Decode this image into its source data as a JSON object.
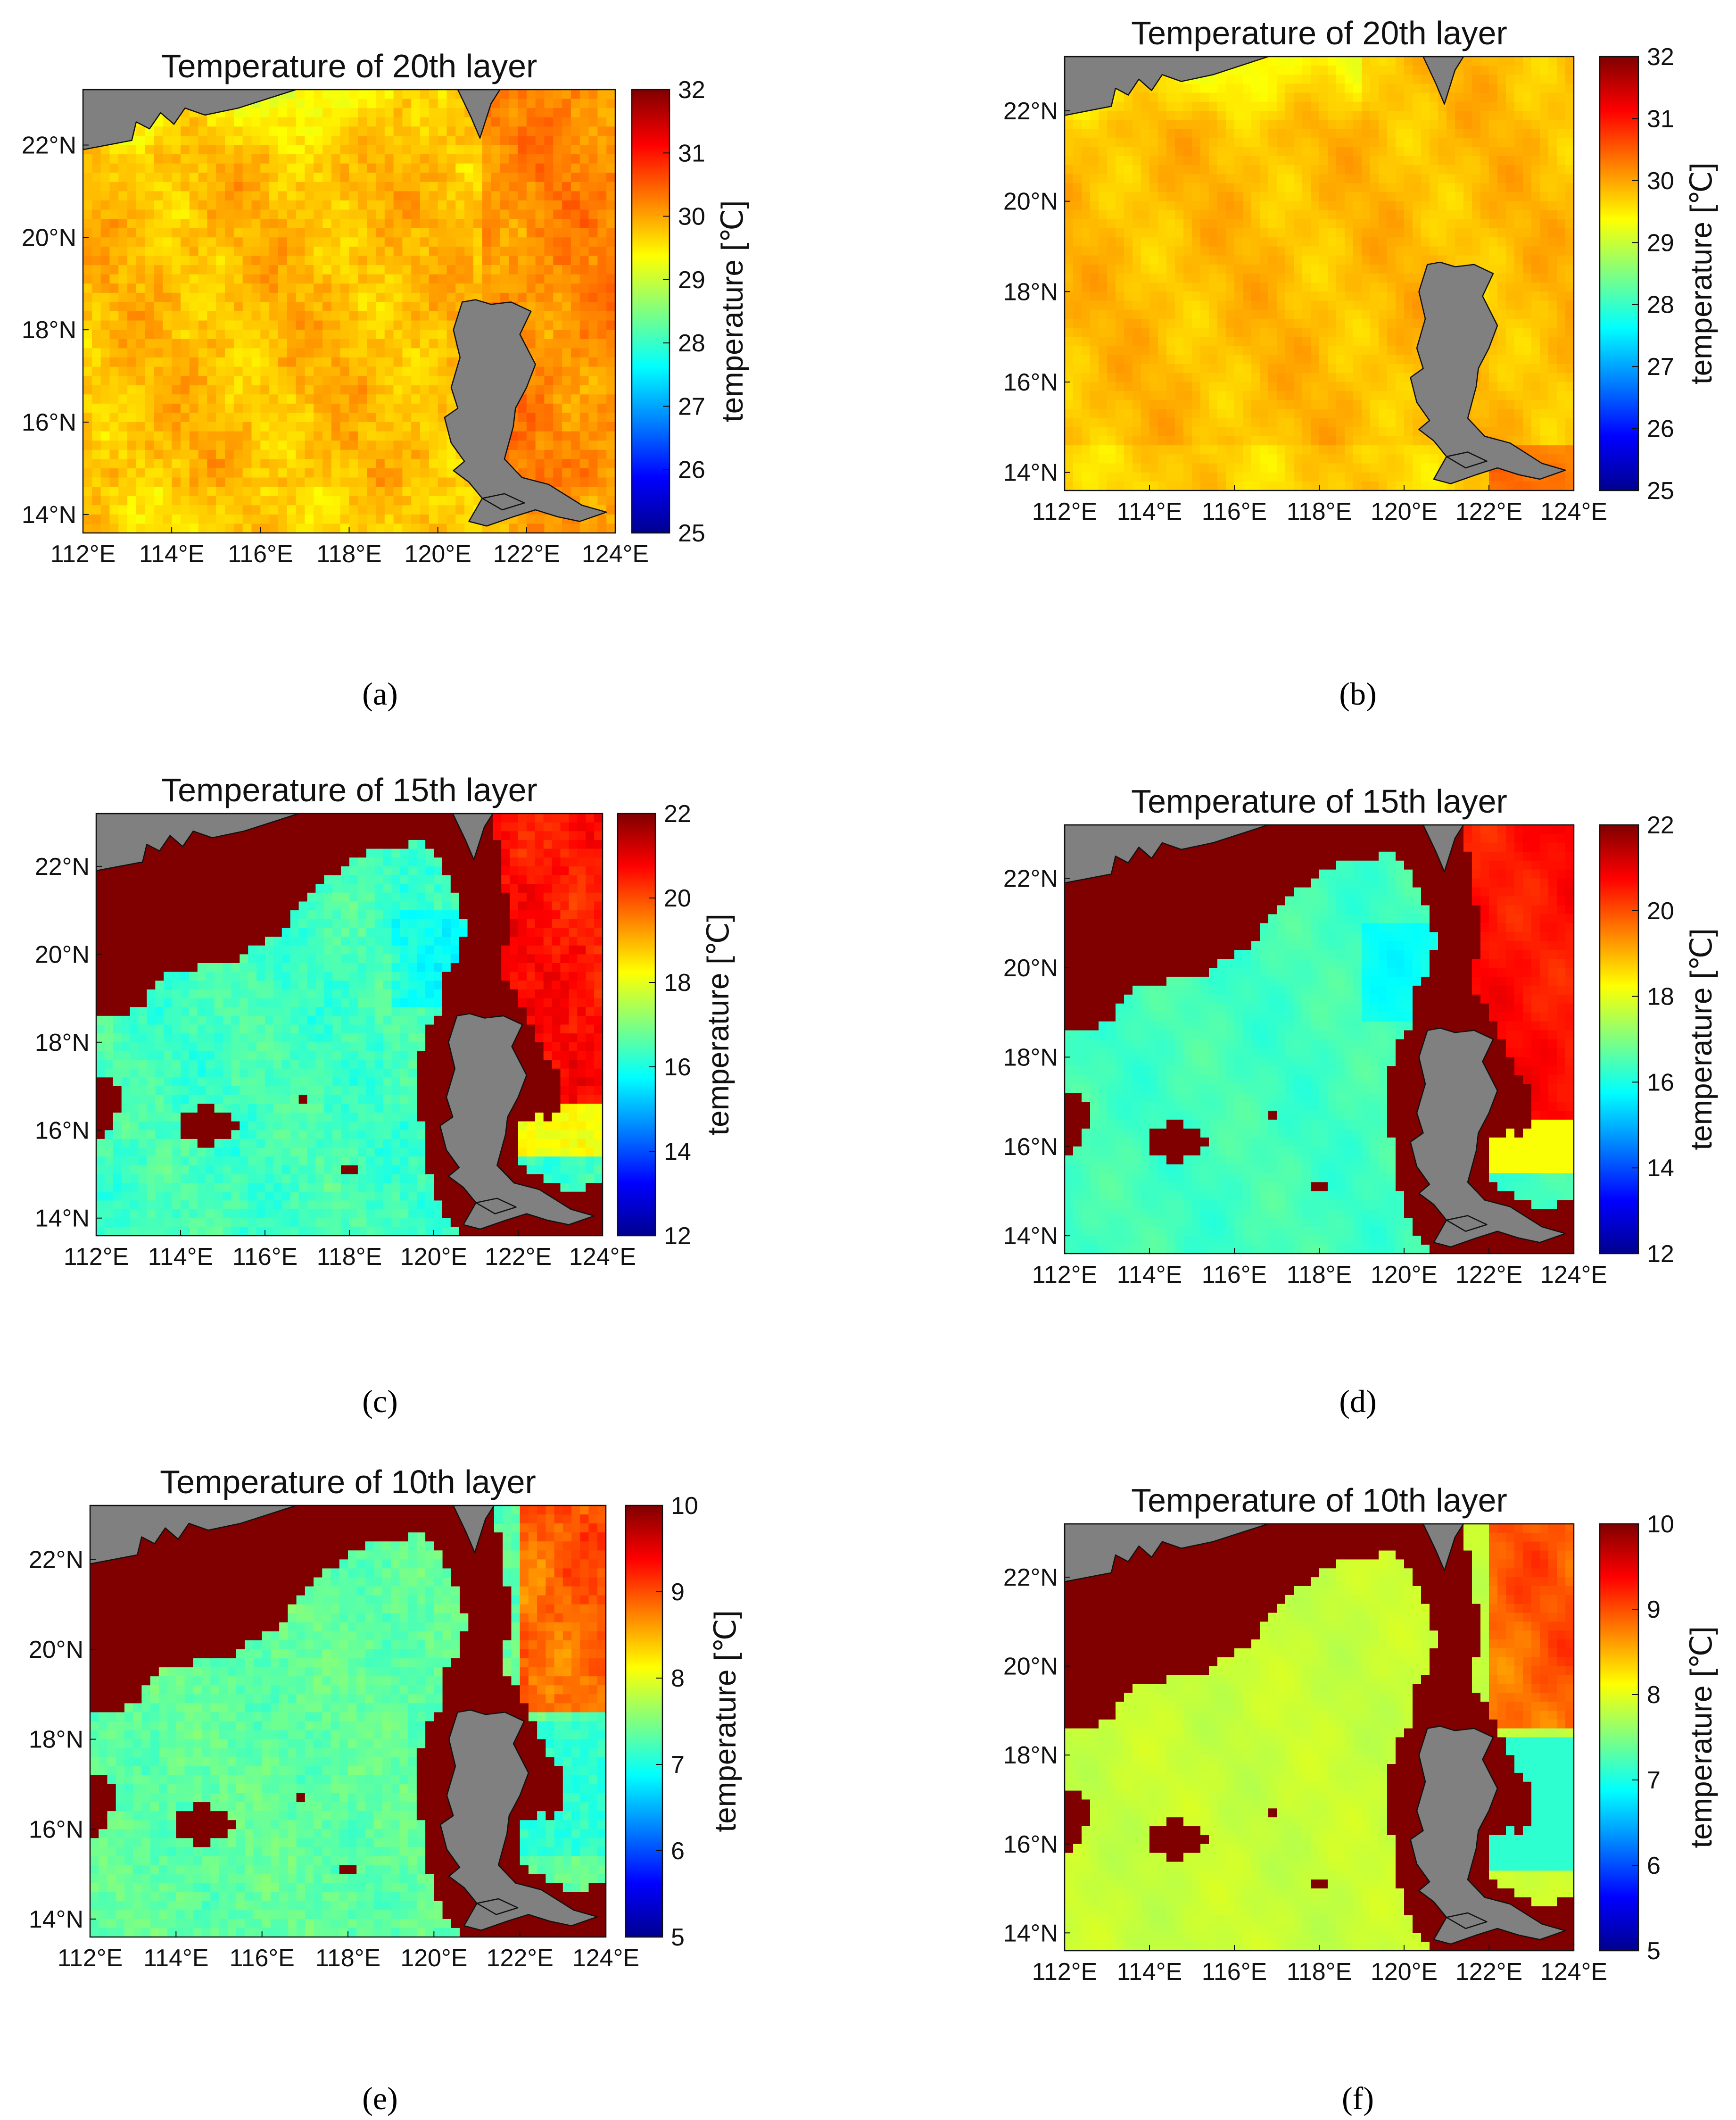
{
  "colors": {
    "land": "#808080",
    "mask": "#800000",
    "colormap": [
      "#00008f",
      "#0000ff",
      "#0080ff",
      "#00ffff",
      "#80ff80",
      "#ffff00",
      "#ff8000",
      "#ff0000",
      "#800000"
    ]
  },
  "chart_data": [
    {
      "type": "heatmap",
      "id": "a",
      "title": "Temperature of 20th layer",
      "xlabel": "",
      "ylabel": "",
      "colorbar_label": "temperature [℃]",
      "xlim": [
        112,
        124
      ],
      "ylim": [
        13.6,
        23.2
      ],
      "xticks": [
        "112°E",
        "114°E",
        "116°E",
        "118°E",
        "120°E",
        "122°E",
        "124°E"
      ],
      "yticks": [
        "14°N",
        "16°N",
        "18°N",
        "20°N",
        "22°N"
      ],
      "clim": [
        25,
        32
      ],
      "cticks": [
        "25",
        "26",
        "27",
        "28",
        "29",
        "30",
        "31",
        "32"
      ],
      "mask": false,
      "caption": "(a)"
    },
    {
      "type": "heatmap",
      "id": "b",
      "title": "Temperature of 20th layer",
      "xlabel": "",
      "ylabel": "",
      "colorbar_label": "temperature [℃]",
      "xlim": [
        112,
        124
      ],
      "ylim": [
        13.6,
        23.2
      ],
      "xticks": [
        "112°E",
        "114°E",
        "116°E",
        "118°E",
        "120°E",
        "122°E",
        "124°E"
      ],
      "yticks": [
        "14°N",
        "16°N",
        "18°N",
        "20°N",
        "22°N"
      ],
      "clim": [
        25,
        32
      ],
      "cticks": [
        "25",
        "26",
        "27",
        "28",
        "29",
        "30",
        "31",
        "32"
      ],
      "mask": false,
      "caption": "(b)"
    },
    {
      "type": "heatmap",
      "id": "c",
      "title": "Temperature of 15th layer",
      "xlabel": "",
      "ylabel": "",
      "colorbar_label": "temperature [℃]",
      "xlim": [
        112,
        124
      ],
      "ylim": [
        13.6,
        23.2
      ],
      "xticks": [
        "112°E",
        "114°E",
        "116°E",
        "118°E",
        "120°E",
        "122°E",
        "124°E"
      ],
      "yticks": [
        "14°N",
        "16°N",
        "18°N",
        "20°N",
        "22°N"
      ],
      "clim": [
        12,
        22
      ],
      "cticks": [
        "12",
        "14",
        "16",
        "18",
        "20",
        "22"
      ],
      "mask": true,
      "caption": "(c)"
    },
    {
      "type": "heatmap",
      "id": "d",
      "title": "Temperature of 15th layer",
      "xlabel": "",
      "ylabel": "",
      "colorbar_label": "temperature [℃]",
      "xlim": [
        112,
        124
      ],
      "ylim": [
        13.6,
        23.2
      ],
      "xticks": [
        "112°E",
        "114°E",
        "116°E",
        "118°E",
        "120°E",
        "122°E",
        "124°E"
      ],
      "yticks": [
        "14°N",
        "16°N",
        "18°N",
        "20°N",
        "22°N"
      ],
      "clim": [
        12,
        22
      ],
      "cticks": [
        "12",
        "14",
        "16",
        "18",
        "20",
        "22"
      ],
      "mask": true,
      "caption": "(d)"
    },
    {
      "type": "heatmap",
      "id": "e",
      "title": "Temperature of 10th layer",
      "xlabel": "",
      "ylabel": "",
      "colorbar_label": "temperature [℃]",
      "xlim": [
        112,
        124
      ],
      "ylim": [
        13.6,
        23.2
      ],
      "xticks": [
        "112°E",
        "114°E",
        "116°E",
        "118°E",
        "120°E",
        "122°E",
        "124°E"
      ],
      "yticks": [
        "14°N",
        "16°N",
        "18°N",
        "20°N",
        "22°N"
      ],
      "clim": [
        5,
        10
      ],
      "cticks": [
        "5",
        "6",
        "7",
        "8",
        "9",
        "10"
      ],
      "mask": true,
      "caption": "(e)"
    },
    {
      "type": "heatmap",
      "id": "f",
      "title": "Temperature of 10th layer",
      "xlabel": "",
      "ylabel": "",
      "colorbar_label": "temperature [℃]",
      "xlim": [
        112,
        124
      ],
      "ylim": [
        13.6,
        23.2
      ],
      "xticks": [
        "112°E",
        "114°E",
        "116°E",
        "118°E",
        "120°E",
        "122°E",
        "124°E"
      ],
      "yticks": [
        "14°N",
        "16°N",
        "18°N",
        "20°N",
        "22°N"
      ],
      "clim": [
        5,
        10
      ],
      "cticks": [
        "5",
        "6",
        "7",
        "8",
        "9",
        "10"
      ],
      "mask": true,
      "caption": "(f)"
    }
  ]
}
